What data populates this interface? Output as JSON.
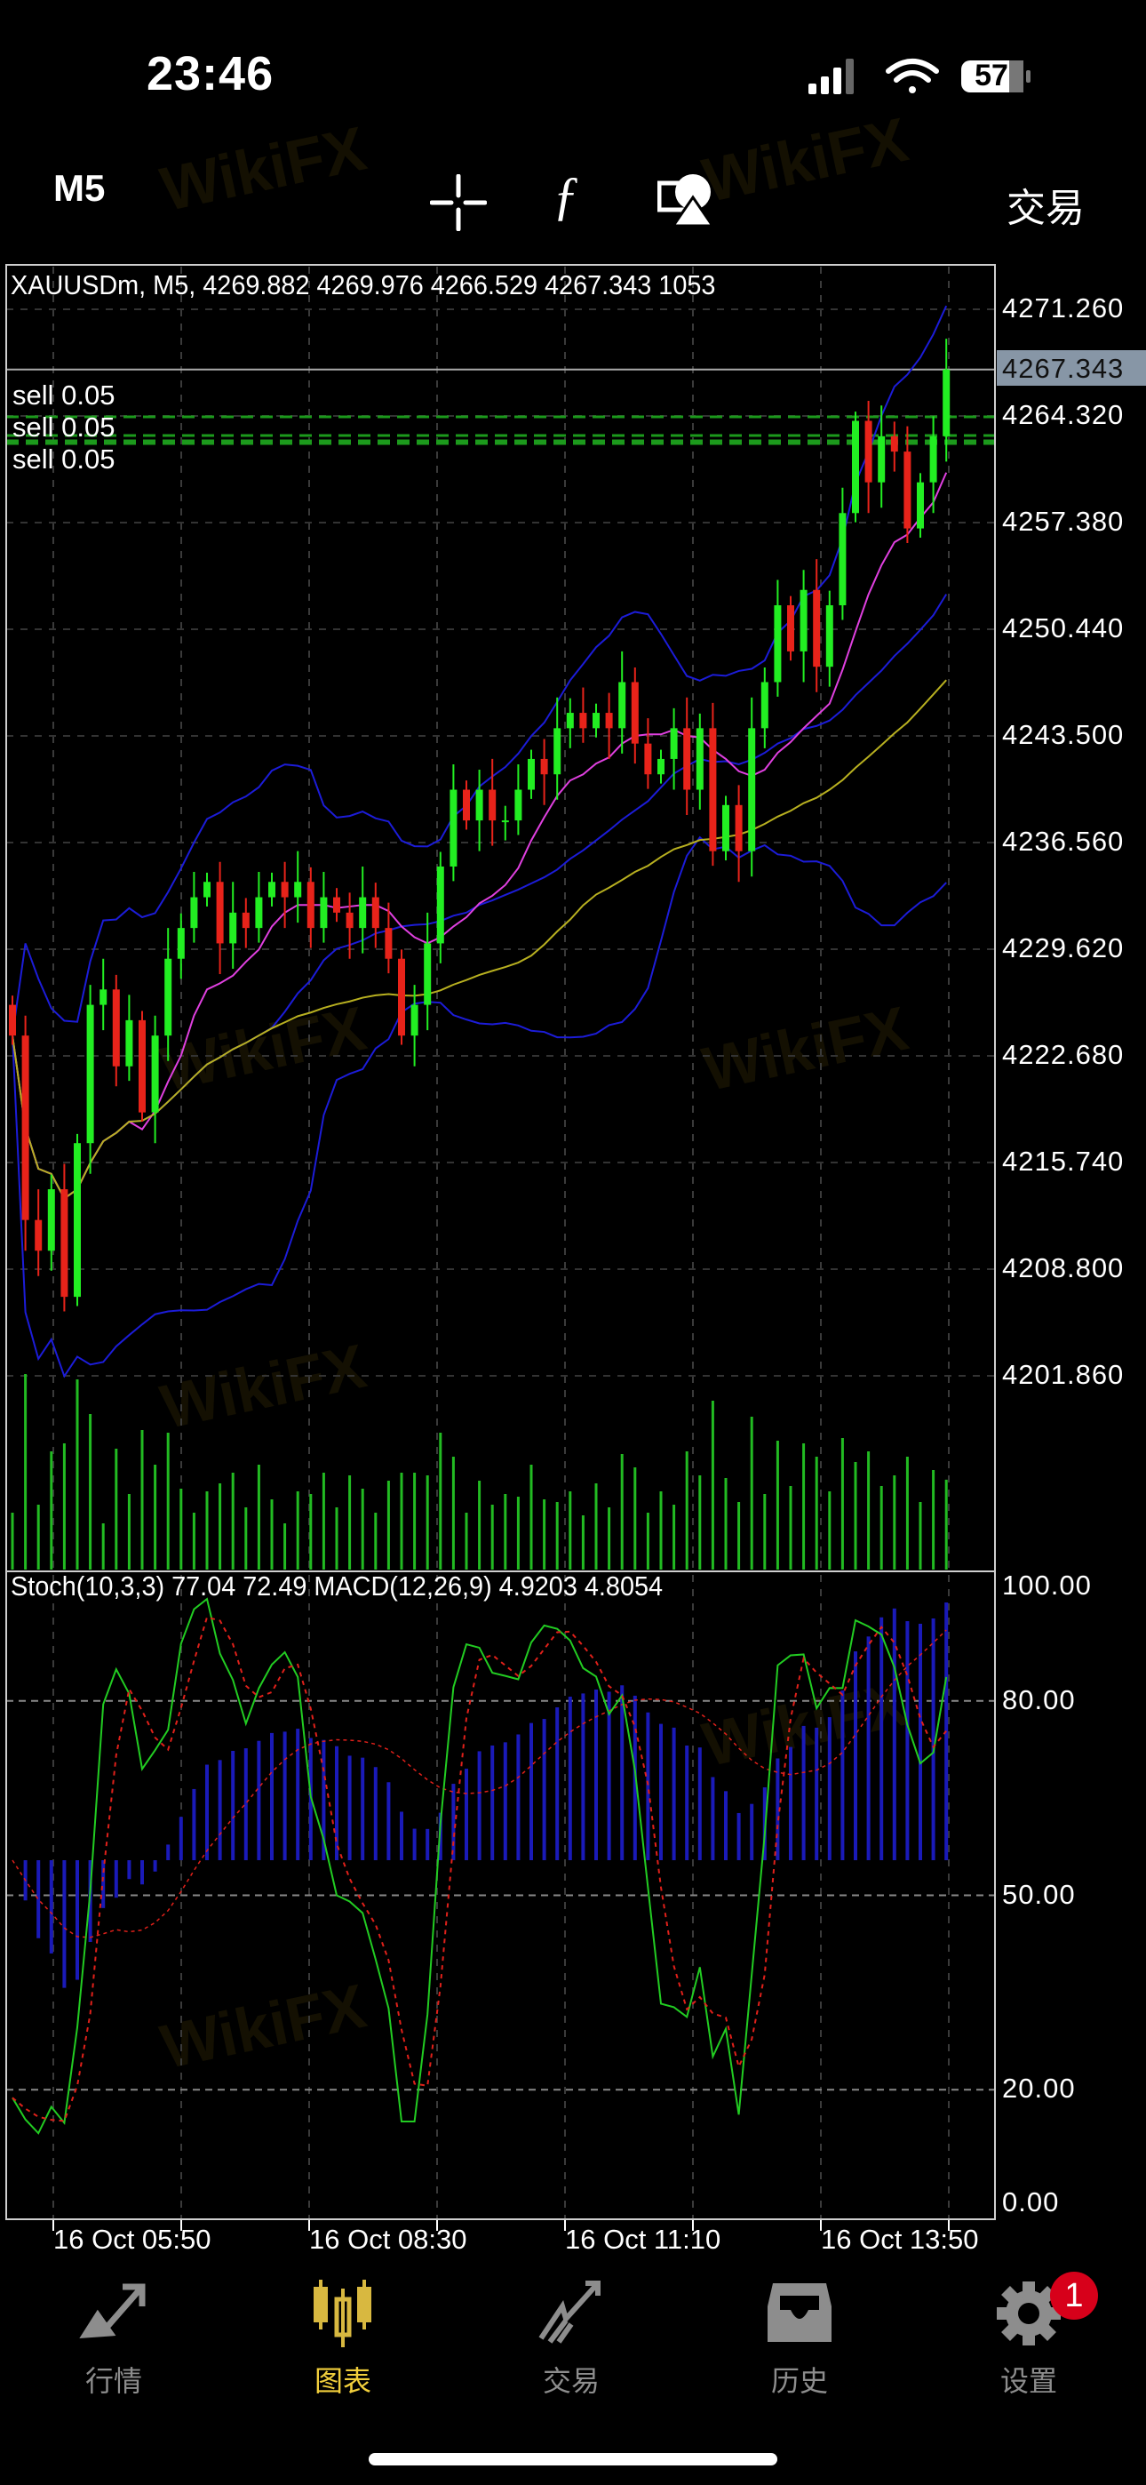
{
  "status_bar": {
    "time": "23:46",
    "battery": "57"
  },
  "toolbar": {
    "timeframe": "M5",
    "crosshair_icon": "crosshair-icon",
    "indicator_icon": "function-icon",
    "objects_icon": "shapes-icon",
    "trade_label": "交易"
  },
  "chart": {
    "info": "XAUUSDm, M5, 4269.882 4269.976 4266.529 4267.343 1053",
    "current_price": "4267.343",
    "price_labels": [
      "4271.260",
      "4264.320",
      "4257.380",
      "4250.440",
      "4243.500",
      "4236.560",
      "4229.620",
      "4222.680",
      "4215.740",
      "4208.800",
      "4201.860"
    ],
    "orders": [
      "sell 0.05",
      "sell 0.05",
      "sell 0.05"
    ],
    "time_labels": [
      "16 Oct 05:50",
      "16 Oct 08:30",
      "16 Oct 11:10",
      "16 Oct 13:50"
    ],
    "sub_info": "Stoch(10,3,3) 77.04 72.49 MACD(12,26,9) 4.9203 4.8054",
    "sub_labels": [
      "100.00",
      "80.00",
      "50.00",
      "20.00",
      "0.00"
    ],
    "colors": {
      "bull": "#22ee22",
      "bear": "#e8231a",
      "bands": "#1c1cd8",
      "ma_fast": "#e040e0",
      "ma_slow": "#b8b020",
      "stoch_k": "#22cc22",
      "stoch_d": "#e0201a",
      "macd": "#1a1ab8",
      "volume": "#22bb22"
    },
    "watermark": "WikiFX"
  },
  "chart_data": {
    "type": "candlestick",
    "symbol": "XAUUSDm",
    "timeframe": "M5",
    "first_open": 4226,
    "close": [
      4224,
      4212,
      4210,
      4214,
      4207,
      4217,
      4226,
      4227,
      4222,
      4225,
      4219,
      4224,
      4229,
      4231,
      4233,
      4234,
      4230,
      4232,
      4231,
      4233,
      4234,
      4233,
      4234,
      4231,
      4233,
      4232,
      4231,
      4233,
      4231,
      4229,
      4224,
      4226,
      4230,
      4235,
      4240,
      4238,
      4240,
      4238,
      4238,
      4240,
      4242,
      4241,
      4244,
      4245,
      4244,
      4245,
      4244,
      4247,
      4243,
      4241,
      4242,
      4244,
      4240,
      4244,
      4236,
      4239,
      4236,
      4244,
      4247,
      4252,
      4249,
      4253,
      4248,
      4252,
      4258,
      4264,
      4260,
      4263,
      4262,
      4257,
      4260,
      4263,
      4267.343
    ],
    "ylim": [
      4195,
      4274
    ],
    "stoch_levels": [
      20,
      50,
      80
    ]
  },
  "tabs": [
    {
      "label": "行情",
      "icon": "quotes-icon"
    },
    {
      "label": "图表",
      "icon": "chart-candles-icon"
    },
    {
      "label": "交易",
      "icon": "trade-icon"
    },
    {
      "label": "历史",
      "icon": "history-icon"
    },
    {
      "label": "设置",
      "icon": "settings-icon",
      "badge": "1"
    }
  ]
}
